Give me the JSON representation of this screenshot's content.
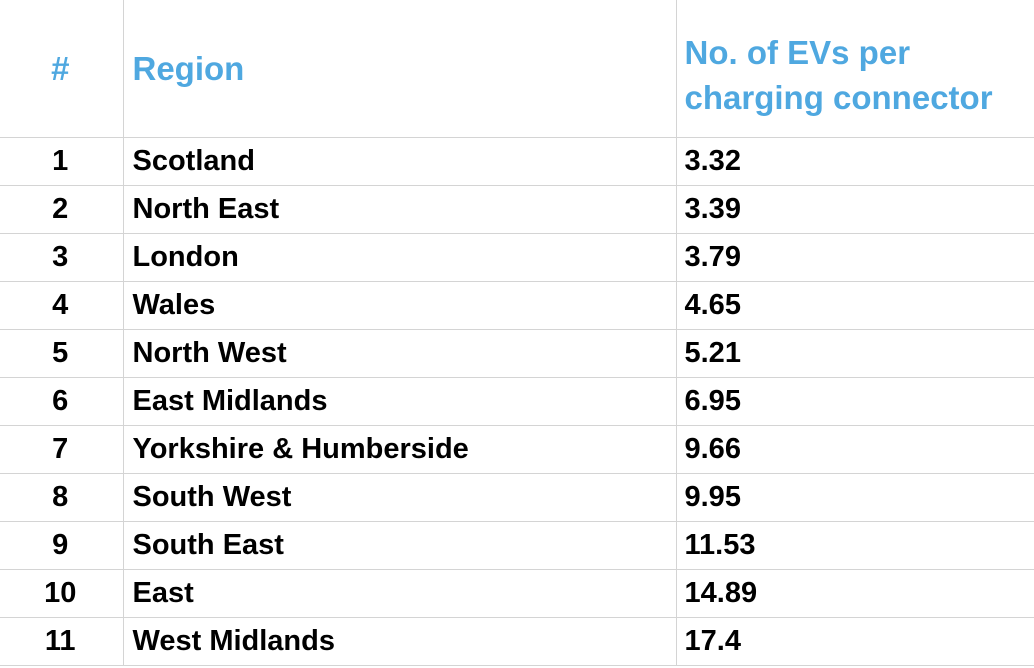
{
  "header": {
    "num": "#",
    "region": "Region",
    "value": "No. of EVs per charging connector"
  },
  "rows": [
    {
      "num": "1",
      "region": "Scotland",
      "value": "3.32"
    },
    {
      "num": "2",
      "region": "North East",
      "value": "3.39"
    },
    {
      "num": "3",
      "region": "London",
      "value": "3.79"
    },
    {
      "num": "4",
      "region": "Wales",
      "value": "4.65"
    },
    {
      "num": "5",
      "region": "North West",
      "value": "5.21"
    },
    {
      "num": "6",
      "region": "East Midlands",
      "value": "6.95"
    },
    {
      "num": "7",
      "region": "Yorkshire & Humberside",
      "value": "9.66"
    },
    {
      "num": "8",
      "region": "South West",
      "value": "9.95"
    },
    {
      "num": "9",
      "region": "South East",
      "value": "11.53"
    },
    {
      "num": "10",
      "region": "East",
      "value": "14.89"
    },
    {
      "num": "11",
      "region": "West Midlands",
      "value": "17.4"
    }
  ],
  "colors": {
    "header_text": "#4fa8e0",
    "body_text": "#000000",
    "grid": "#d4d4d4"
  }
}
